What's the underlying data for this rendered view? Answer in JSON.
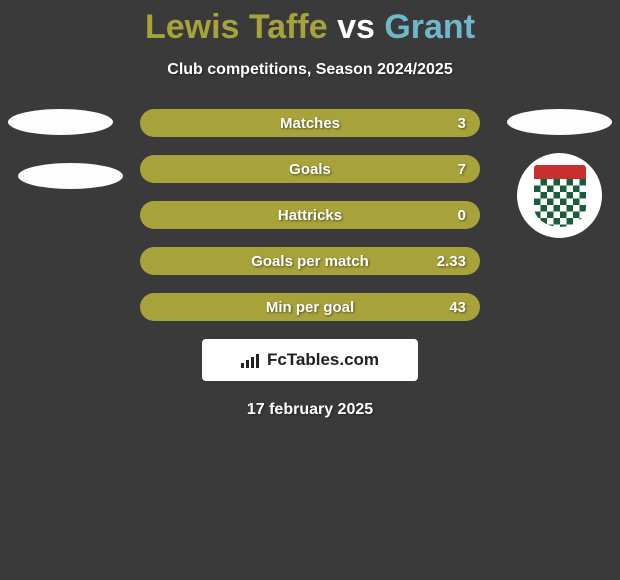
{
  "title": {
    "player1": "Lewis Taffe",
    "vs": "vs",
    "player2": "Grant",
    "player1_color": "#a8a23a",
    "vs_color": "#ffffff",
    "player2_color": "#6fb8c9"
  },
  "subtitle": "Club competitions, Season 2024/2025",
  "bar_color": "#a8a23a",
  "stats": [
    {
      "label": "Matches",
      "value_right": "3"
    },
    {
      "label": "Goals",
      "value_right": "7"
    },
    {
      "label": "Hattricks",
      "value_right": "0"
    },
    {
      "label": "Goals per match",
      "value_right": "2.33"
    },
    {
      "label": "Min per goal",
      "value_right": "43"
    }
  ],
  "crest": {
    "top_color": "#c73030",
    "check_dark": "#1a5d3a",
    "check_light": "#ffffff"
  },
  "brand": "FcTables.com",
  "footer_date": "17 february 2025",
  "background_color": "#3a3a3a"
}
